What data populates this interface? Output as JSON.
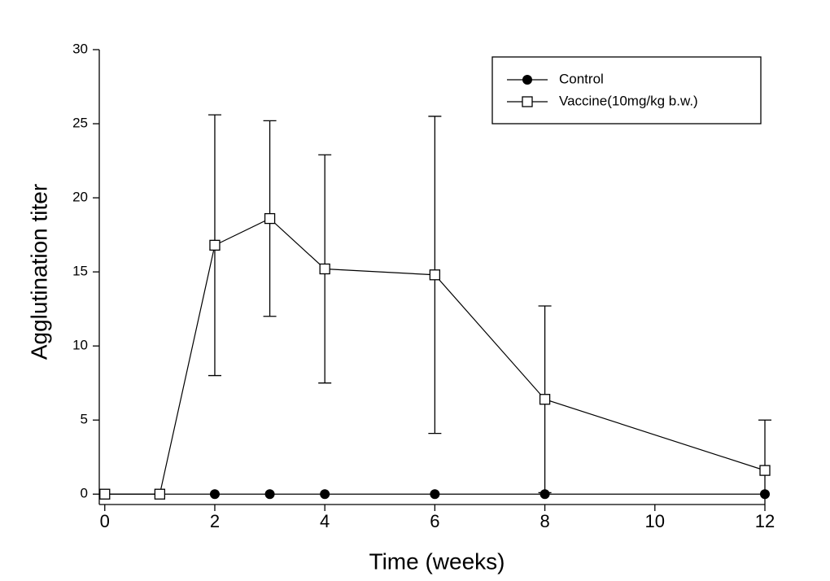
{
  "chart_data": {
    "type": "line",
    "x_label": "Time (weeks)",
    "y_label": "Agglutination titer",
    "x": [
      0,
      1,
      2,
      3,
      4,
      6,
      8,
      12
    ],
    "series": [
      {
        "name": "Control",
        "color": "#000000",
        "marker": "filled-circle",
        "values": [
          0,
          0,
          0,
          0,
          0,
          0,
          0,
          0
        ]
      },
      {
        "name": "Vaccine(10mg/kg b.w.)",
        "color": "#000000",
        "marker": "open-square",
        "values": [
          0,
          0,
          16.8,
          18.6,
          15.2,
          14.8,
          6.4,
          1.6
        ],
        "errors": [
          0,
          0,
          8.8,
          6.6,
          7.7,
          10.7,
          6.3,
          3.4
        ]
      }
    ],
    "xlim": [
      -0.1,
      12
    ],
    "ylim": [
      -0.7,
      30
    ],
    "xticks": [
      0,
      2,
      4,
      6,
      8,
      10,
      12
    ],
    "yticks": [
      0,
      5,
      10,
      15,
      20,
      25,
      30
    ],
    "legend": "upper-right",
    "grid": false
  }
}
